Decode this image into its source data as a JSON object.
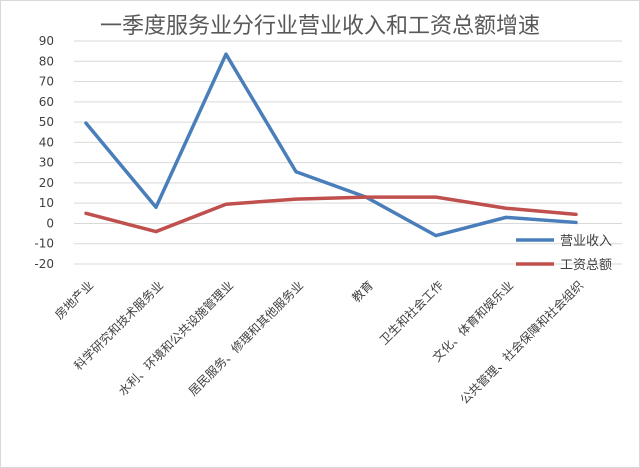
{
  "chart_data": {
    "type": "line",
    "title": "一季度服务业分行业营业收入和工资总额增速",
    "categories": [
      "房地产业",
      "科学研究和技术服务业",
      "水利、环境和公共设施管理业",
      "居民服务、修理和其他服务业",
      "教育",
      "卫生和社会工作",
      "文化、体育和娱乐业",
      "公共管理、社会保障和社会组织"
    ],
    "series": [
      {
        "name": "营业收入",
        "color": "#4a7ebb",
        "values": [
          49.5,
          8,
          83.5,
          25.5,
          13,
          -6,
          3,
          0.5
        ]
      },
      {
        "name": "工资总额",
        "color": "#c0504d",
        "values": [
          5,
          -4,
          9.5,
          12,
          13,
          13,
          7.5,
          4.5
        ]
      }
    ],
    "ylim": [
      -20,
      90
    ],
    "yticks": [
      -20,
      -10,
      0,
      10,
      20,
      30,
      40,
      50,
      60,
      70,
      80,
      90
    ],
    "legend": "right",
    "grid": true
  }
}
